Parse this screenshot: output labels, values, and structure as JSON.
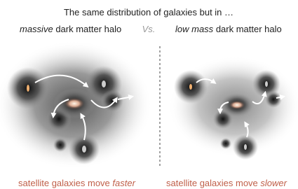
{
  "title": "The same distribution of galaxies but in …",
  "vs": "Vs.",
  "left": {
    "heading": {
      "emphasis": "massive",
      "rest": "dark matter halo"
    },
    "caption": {
      "text": "satellite galaxies move",
      "emphasis": "faster"
    }
  },
  "right": {
    "heading": {
      "emphasis": "low mass",
      "rest": "dark matter halo"
    },
    "caption": {
      "text": "satellite galaxies move",
      "emphasis": "slower"
    }
  }
}
